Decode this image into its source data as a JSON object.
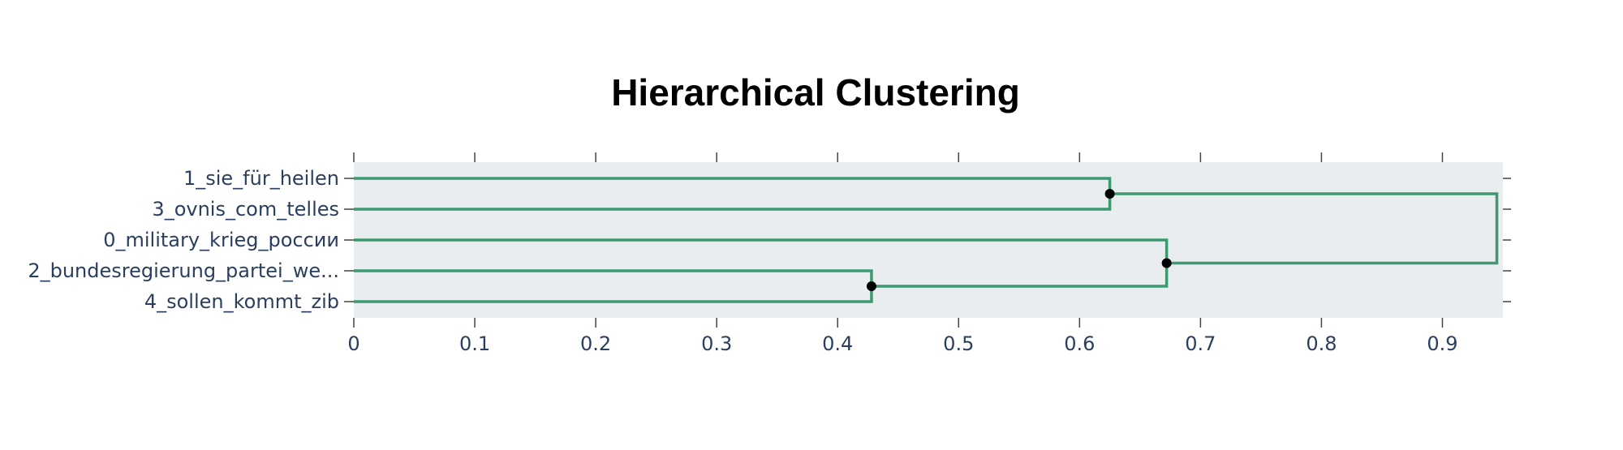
{
  "chart_data": {
    "type": "dendrogram",
    "title": "Hierarchical Clustering",
    "xlim": [
      0,
      0.95
    ],
    "x_ticks": [
      0,
      0.1,
      0.2,
      0.3,
      0.4,
      0.5,
      0.6,
      0.7,
      0.8,
      0.9
    ],
    "x_tick_labels": [
      "0",
      "0.1",
      "0.2",
      "0.3",
      "0.4",
      "0.5",
      "0.6",
      "0.7",
      "0.8",
      "0.9"
    ],
    "leaves": [
      "1_sie_für_heilen",
      "3_ovnis_com_telles",
      "0_military_krieg_россии",
      "2_bundesregierung_partei_we...",
      "4_sollen_kommt_zib"
    ],
    "merges": [
      {
        "left": "leaf:3",
        "right": "leaf:4",
        "distance": 0.428
      },
      {
        "left": "leaf:0",
        "right": "leaf:1",
        "distance": 0.625
      },
      {
        "left": "leaf:2",
        "right": "merge:0",
        "distance": 0.672
      },
      {
        "left": "merge:1",
        "right": "merge:2",
        "distance": 0.945
      }
    ],
    "colors": {
      "link": "#3d9970",
      "node": "#000000",
      "plot_bg": "#e9edf0",
      "tick_text": "#2a3f5f",
      "tick_mark": "#444444"
    },
    "grid": false,
    "legend": "none"
  }
}
